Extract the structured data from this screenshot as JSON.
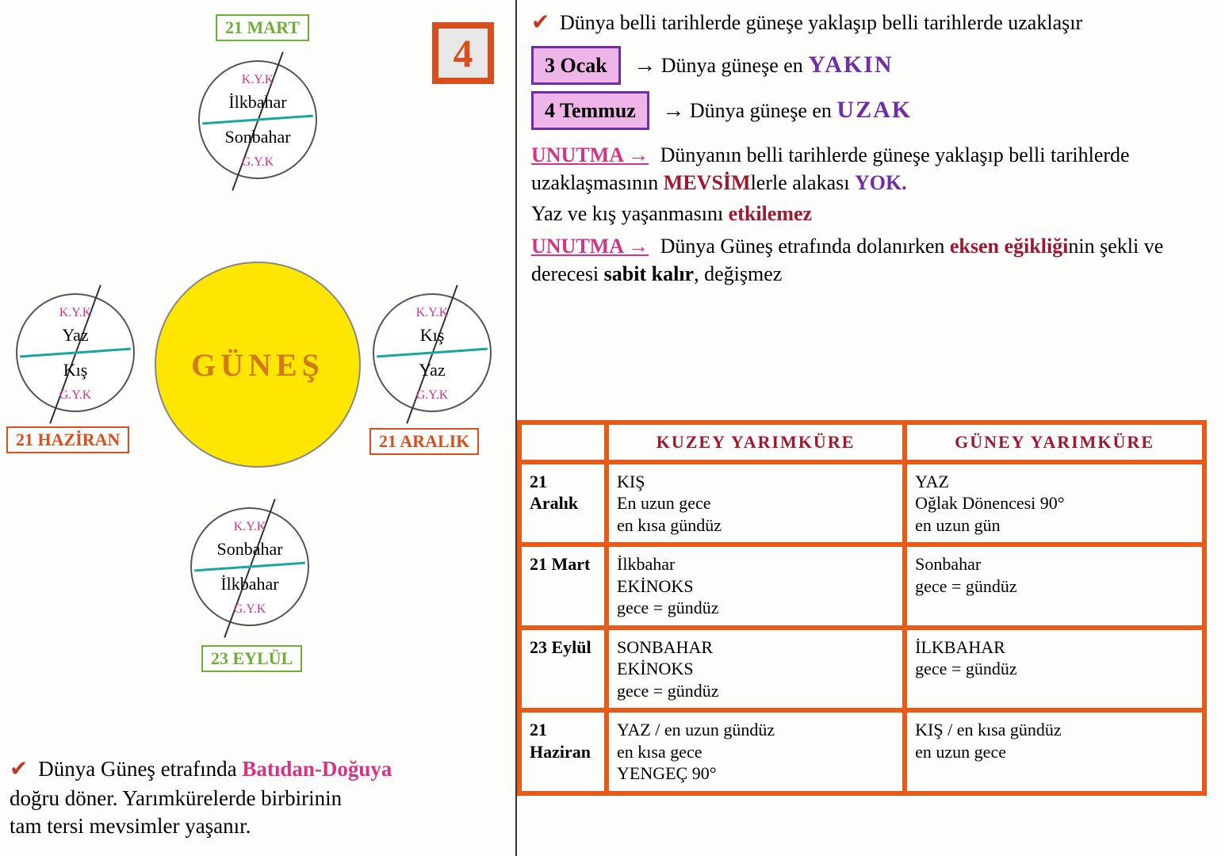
{
  "colors": {
    "sun_fill": "#ffe600",
    "sun_text": "#d07a1a",
    "green_box": "#6fae3a",
    "orange_box": "#d94e1f",
    "pink": "#d63384",
    "purple": "#6f2da8",
    "teal": "#1aa6a0",
    "darkred": "#a01830",
    "black": "#1a1a1a",
    "highlight_pink": "#efb4e8",
    "table_border": "#e85a1a",
    "check": "#c0392b"
  },
  "stamp": "4",
  "sun_label": "GÜNEŞ",
  "dates": {
    "top": {
      "label": "21 MART",
      "color": "#6fae3a"
    },
    "right": {
      "label": "21 ARALIK",
      "color": "#d94e1f"
    },
    "bottom": {
      "label": "23 EYLÜL",
      "color": "#6fae3a"
    },
    "left": {
      "label": "21 HAZİRAN",
      "color": "#d94e1f"
    }
  },
  "hemi_labels": {
    "n": "K.Y.K",
    "s": "G.Y.K"
  },
  "positions": {
    "top": {
      "upper": "İlkbahar",
      "lower": "Sonbahar"
    },
    "right": {
      "upper": "Kış",
      "lower": "Yaz"
    },
    "bottom": {
      "upper": "Sonbahar",
      "lower": "İlkbahar"
    },
    "left": {
      "upper": "Yaz",
      "lower": "Kış"
    }
  },
  "bottom_note": {
    "l1a": "Dünya Güneş etrafında ",
    "l1b": "Batıdan-Doğuya",
    "l2": "doğru döner. Yarımkürelerde birbirinin",
    "l3": "tam tersi mevsimler yaşanır."
  },
  "right": {
    "intro": "Dünya belli tarihlerde güneşe yaklaşıp belli tarihlerde uzaklaşır",
    "d1_box": "3 Ocak",
    "d1_text": "Dünya güneşe en",
    "d1_key": "YAKIN",
    "d2_box": "4 Temmuz",
    "d2_text": "Dünya güneşe en",
    "d2_key": "UZAK",
    "unutma": "UNUTMA →",
    "n1a": "Dünyanın belli tarihlerde güneşe yaklaşıp belli tarihlerde uzaklaşmasının ",
    "n1b": "MEVSİM",
    "n1c": "lerle alakası ",
    "n1d": "YOK.",
    "n2a": "Yaz ve kış yaşanmasını ",
    "n2b": "etkilemez",
    "n3a": "Dünya Güneş etrafında dolanırken ",
    "n3b": "eksen eğikliği",
    "n3c": "nin şekli ve derecesi ",
    "n3d": "sabit kalır",
    "n3e": ", değişmez"
  },
  "table": {
    "head_n": "KUZEY YARIMKÜRE",
    "head_s": "GÜNEY YARIMKÜRE",
    "rows": [
      {
        "date": "21 Aralık",
        "n": "KIŞ\nEn uzun gece\nen kısa gündüz",
        "s": "YAZ\nOğlak Dönencesi 90°\nen uzun gün"
      },
      {
        "date": "21 Mart",
        "n": "İlkbahar\nEKİNOKS\ngece = gündüz",
        "s": "Sonbahar\ngece = gündüz"
      },
      {
        "date": "23 Eylül",
        "n": "SONBAHAR\nEKİNOKS\ngece = gündüz",
        "s": "İLKBAHAR\ngece = gündüz"
      },
      {
        "date": "21 Haziran",
        "n": "YAZ / en uzun gündüz\nen kısa gece\nYENGEÇ 90°",
        "s": "KIŞ / en kısa gündüz\nen uzun gece"
      }
    ]
  }
}
